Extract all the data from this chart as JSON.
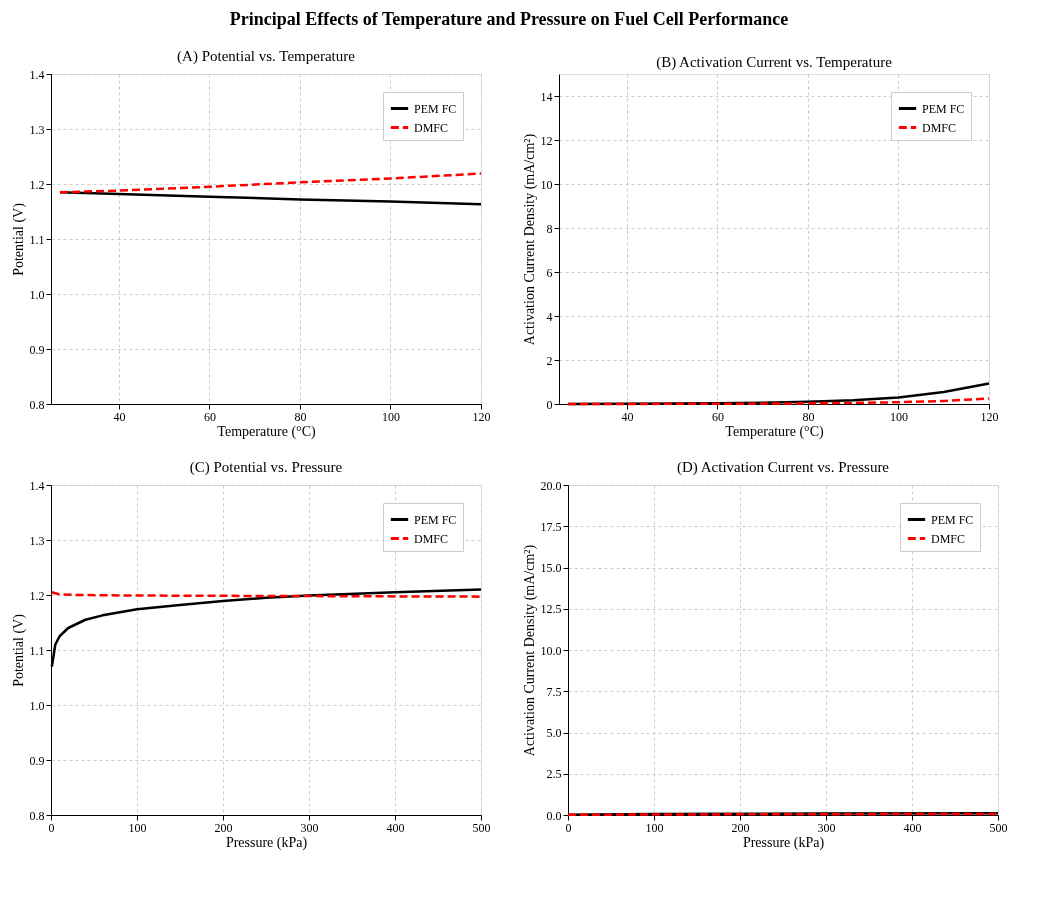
{
  "chart_data": [
    {
      "type": "line",
      "title": "(A) Potential vs. Temperature",
      "xlabel": "Temperature (°C)",
      "ylabel": "Potential (V)",
      "annotations": [
        "Principal Effects of Temperature and Pressure on Fuel Cell Performance"
      ],
      "xlim": [
        25,
        120
      ],
      "xticks": [
        40,
        60,
        80,
        100,
        120
      ],
      "ylim": [
        0.8,
        1.4
      ],
      "yticks": [
        0.8,
        0.9,
        {
          "value": 1,
          "label": "1.0"
        },
        1.1,
        1.2,
        1.3,
        1.4
      ],
      "grid": true,
      "legend": "top right",
      "marker": "none",
      "series": [
        {
          "name": "PEM FC",
          "color": "#000000",
          "line_style": "solid",
          "x": [
            27,
            40,
            60,
            80,
            100,
            120
          ],
          "values": [
            1.185,
            1.182,
            1.177,
            1.172,
            1.168,
            1.163
          ]
        },
        {
          "name": "DMFC",
          "color": "#ff0000",
          "line_style": "dashed",
          "x": [
            27,
            40,
            60,
            80,
            100,
            120
          ],
          "values": [
            1.185,
            1.188,
            1.195,
            1.203,
            1.21,
            1.219
          ]
        }
      ]
    },
    {
      "type": "line",
      "title": "(B) Activation Current vs. Temperature",
      "xlabel": "Temperature (°C)",
      "ylabel": "Activation Current Density (mA/cm²)",
      "xlim": [
        25,
        120
      ],
      "xticks": [
        40,
        60,
        80,
        100,
        120
      ],
      "ylim": [
        0,
        15
      ],
      "yticks": [
        0,
        2,
        4,
        6,
        8,
        10,
        12,
        14
      ],
      "grid": true,
      "legend": "top right",
      "marker": "none",
      "series": [
        {
          "name": "PEM FC",
          "color": "#000000",
          "line_style": "solid",
          "x": [
            27,
            40,
            60,
            70,
            80,
            90,
            100,
            110,
            120
          ],
          "values": [
            0,
            0.01,
            0.03,
            0.06,
            0.1,
            0.17,
            0.3,
            0.55,
            0.93
          ]
        },
        {
          "name": "DMFC",
          "color": "#ff0000",
          "line_style": "dashed",
          "x": [
            27,
            60,
            80,
            90,
            100,
            110,
            120
          ],
          "values": [
            0,
            0.01,
            0.03,
            0.05,
            0.08,
            0.14,
            0.25
          ]
        }
      ]
    },
    {
      "type": "line",
      "title": "(C) Potential vs. Pressure",
      "xlabel": "Pressure (kPa)",
      "ylabel": "Potential (V)",
      "xlim": [
        0,
        500
      ],
      "xticks": [
        0,
        100,
        200,
        300,
        400,
        500
      ],
      "ylim": [
        0.8,
        1.4
      ],
      "yticks": [
        0.8,
        0.9,
        {
          "value": 1,
          "label": "1.0"
        },
        1.1,
        1.2,
        1.3,
        1.4
      ],
      "grid": true,
      "legend": "top right",
      "marker": "none",
      "series": [
        {
          "name": "PEM FC",
          "color": "#000000",
          "line_style": "solid",
          "x": [
            1,
            5,
            10,
            20,
            40,
            60,
            100,
            150,
            200,
            250,
            300,
            400,
            500
          ],
          "values": [
            1.07,
            1.11,
            1.125,
            1.14,
            1.155,
            1.163,
            1.174,
            1.182,
            1.189,
            1.195,
            1.199,
            1.205,
            1.21
          ]
        },
        {
          "name": "DMFC",
          "color": "#ff0000",
          "line_style": "dashed",
          "x": [
            1,
            10,
            30,
            100,
            300,
            500
          ],
          "values": [
            1.205,
            1.201,
            1.2,
            1.199,
            1.198,
            1.197
          ]
        }
      ]
    },
    {
      "type": "line",
      "title": "(D) Activation Current vs. Pressure",
      "xlabel": "Pressure (kPa)",
      "ylabel": "Activation Current Density (mA/cm²)",
      "xlim": [
        0,
        500
      ],
      "xticks": [
        0,
        100,
        200,
        300,
        400,
        500
      ],
      "ylim": [
        0,
        20
      ],
      "yticks": [
        {
          "value": 0,
          "label": "0.0"
        },
        2.5,
        {
          "value": 5,
          "label": "5.0"
        },
        7.5,
        {
          "value": 10,
          "label": "10.0"
        },
        12.5,
        {
          "value": 15,
          "label": "15.0"
        },
        17.5,
        {
          "value": 20,
          "label": "20.0"
        }
      ],
      "grid": true,
      "legend": "top right",
      "marker": "none",
      "series": [
        {
          "name": "PEM FC",
          "color": "#000000",
          "line_style": "solid",
          "x": [
            0,
            100,
            300,
            500
          ],
          "values": [
            0.02,
            0.06,
            0.09,
            0.11
          ]
        },
        {
          "name": "DMFC",
          "color": "#ff0000",
          "line_style": "dashed",
          "x": [
            0,
            100,
            300,
            500
          ],
          "values": [
            0.01,
            0.03,
            0.05,
            0.06
          ]
        }
      ]
    }
  ]
}
